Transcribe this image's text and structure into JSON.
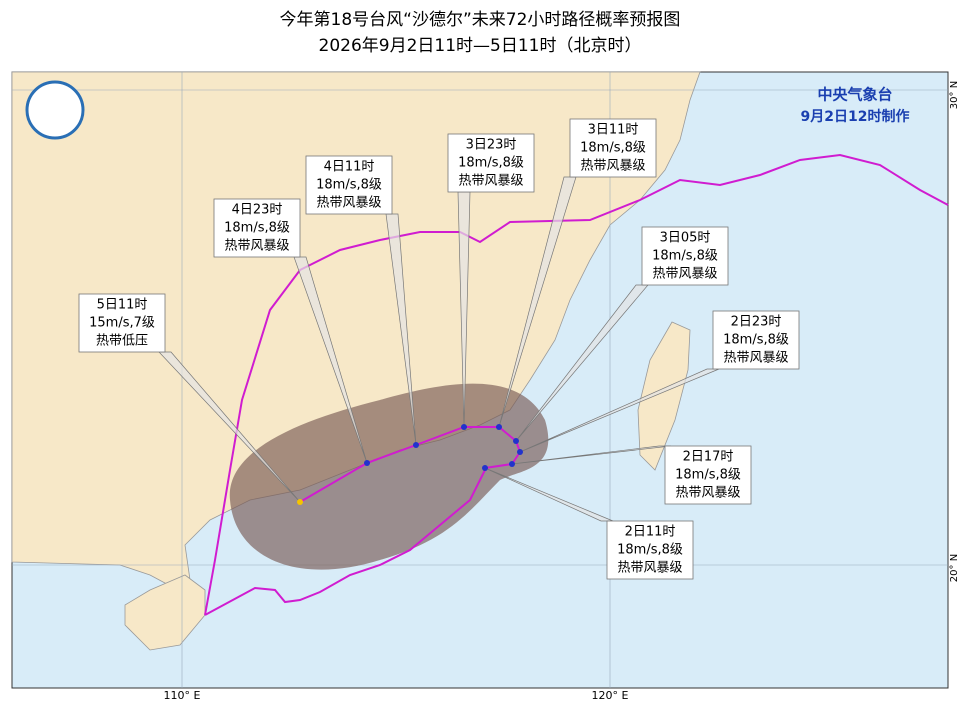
{
  "header": {
    "title": "今年第18号台风“沙德尔”未来72小时路径概率预报图",
    "subtitle": "2026年9月2日11时—5日11时（北京时）"
  },
  "agency": {
    "name": "中央气象台",
    "issued": "9月2日12时制作"
  },
  "forecast_points": [
    {
      "time": "5日11时",
      "wind": "15m/s,7级",
      "level": "热带低压"
    },
    {
      "time": "4日23时",
      "wind": "18m/s,8级",
      "level": "热带风暴级"
    },
    {
      "time": "4日11时",
      "wind": "18m/s,8级",
      "level": "热带风暴级"
    },
    {
      "time": "3日23时",
      "wind": "18m/s,8级",
      "level": "热带风暴级"
    },
    {
      "time": "3日11时",
      "wind": "18m/s,8级",
      "level": "热带风暴级"
    },
    {
      "time": "3日05时",
      "wind": "18m/s,8级",
      "level": "热带风暴级"
    },
    {
      "time": "2日23时",
      "wind": "18m/s,8级",
      "level": "热带风暴级"
    },
    {
      "time": "2日17时",
      "wind": "18m/s,8级",
      "level": "热带风暴级"
    },
    {
      "time": "2日11时",
      "wind": "18m/s,8级",
      "level": "热带风暴级"
    }
  ],
  "graticule": {
    "lon": [
      "110° E",
      "120° E"
    ],
    "lat": [
      "30° N",
      "20° N"
    ]
  }
}
